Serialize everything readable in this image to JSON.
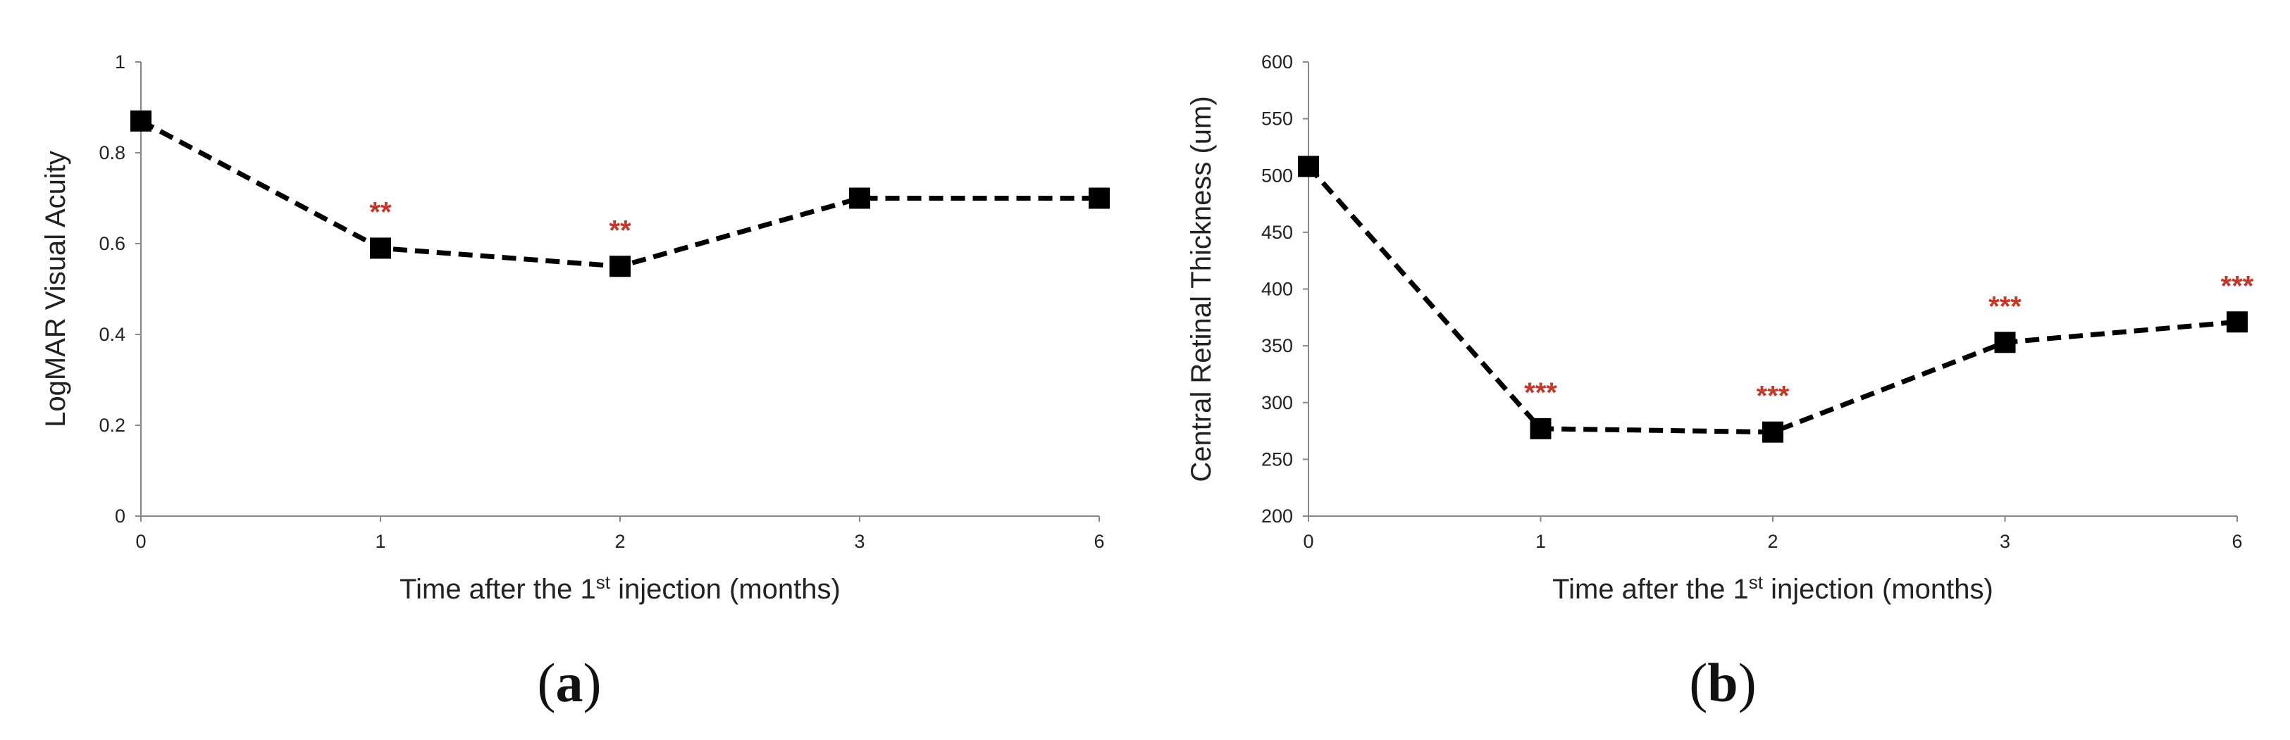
{
  "chart_data": [
    {
      "type": "line",
      "caption": {
        "open": "(",
        "letter": "a",
        "close": ")"
      },
      "xlabel": {
        "prefix": "Time after the 1",
        "sup": "st",
        "suffix": " injection (months)"
      },
      "ylabel": "LogMAR Visual Acuity",
      "categories": [
        "0",
        "1",
        "2",
        "3",
        "6"
      ],
      "ylim": [
        0,
        1
      ],
      "yticks": [
        {
          "value": 0,
          "label": "0"
        },
        {
          "value": 0.2,
          "label": "0.2"
        },
        {
          "value": 0.4,
          "label": "0.4"
        },
        {
          "value": 0.6,
          "label": "0.6"
        },
        {
          "value": 0.8,
          "label": "0.8"
        },
        {
          "value": 1,
          "label": "1"
        }
      ],
      "values": [
        0.87,
        0.59,
        0.55,
        0.7,
        0.7
      ],
      "annotations": [
        "",
        "**",
        "**",
        "",
        ""
      ],
      "line_style": "dashed",
      "marker": "square",
      "line_color": "#000000",
      "annotation_color": "#c0392b",
      "grid": false,
      "legend": "none"
    },
    {
      "type": "line",
      "caption": {
        "open": "(",
        "letter": "b",
        "close": ")"
      },
      "xlabel": {
        "prefix": "Time after the 1",
        "sup": "st",
        "suffix": " injection (months)"
      },
      "ylabel": "Central Retinal Thickness (um)",
      "categories": [
        "0",
        "1",
        "2",
        "3",
        "6"
      ],
      "ylim": [
        200,
        600
      ],
      "yticks": [
        {
          "value": 200,
          "label": "200"
        },
        {
          "value": 250,
          "label": "250"
        },
        {
          "value": 300,
          "label": "300"
        },
        {
          "value": 350,
          "label": "350"
        },
        {
          "value": 400,
          "label": "400"
        },
        {
          "value": 450,
          "label": "450"
        },
        {
          "value": 500,
          "label": "500"
        },
        {
          "value": 550,
          "label": "550"
        },
        {
          "value": 600,
          "label": "600"
        }
      ],
      "values": [
        508,
        277,
        274,
        353,
        371
      ],
      "annotations": [
        "",
        "***",
        "***",
        "***",
        "***"
      ],
      "line_style": "dashed",
      "marker": "square",
      "line_color": "#000000",
      "annotation_color": "#c0392b",
      "grid": false,
      "legend": "none"
    }
  ]
}
